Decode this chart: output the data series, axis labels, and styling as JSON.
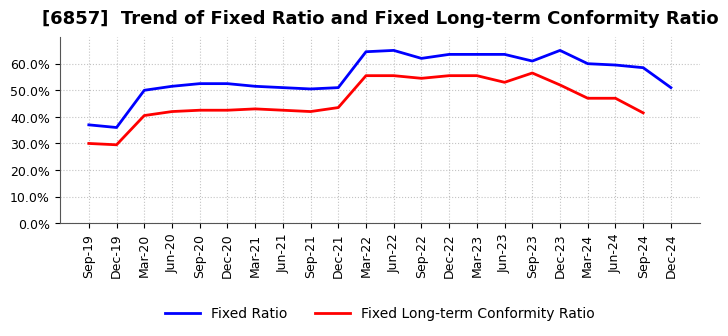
{
  "title": "[6857]  Trend of Fixed Ratio and Fixed Long-term Conformity Ratio",
  "x_labels": [
    "Sep-19",
    "Dec-19",
    "Mar-20",
    "Jun-20",
    "Sep-20",
    "Dec-20",
    "Mar-21",
    "Jun-21",
    "Sep-21",
    "Dec-21",
    "Mar-22",
    "Jun-22",
    "Sep-22",
    "Dec-22",
    "Mar-23",
    "Jun-23",
    "Sep-23",
    "Dec-23",
    "Mar-24",
    "Jun-24",
    "Sep-24",
    "Dec-24"
  ],
  "fixed_ratio": [
    37.0,
    36.0,
    50.0,
    51.5,
    52.5,
    52.5,
    51.5,
    51.0,
    50.5,
    51.0,
    64.5,
    65.0,
    62.0,
    63.5,
    63.5,
    63.5,
    61.0,
    65.0,
    60.0,
    59.5,
    58.5,
    51.0
  ],
  "fixed_lt_conformity": [
    30.0,
    29.5,
    40.5,
    42.0,
    42.5,
    42.5,
    43.0,
    42.5,
    42.0,
    43.5,
    55.5,
    55.5,
    54.5,
    55.5,
    55.5,
    53.0,
    56.5,
    52.0,
    47.0,
    47.0,
    41.5,
    null
  ],
  "fixed_ratio_color": "#0000FF",
  "fixed_lt_color": "#FF0000",
  "ylim": [
    0,
    70
  ],
  "yticks": [
    0,
    10,
    20,
    30,
    40,
    50,
    60
  ],
  "ytick_labels": [
    "0.0%",
    "10.0%",
    "20.0%",
    "30.0%",
    "40.0%",
    "50.0%",
    "60.0%"
  ],
  "legend_fixed_ratio": "Fixed Ratio",
  "legend_fixed_lt": "Fixed Long-term Conformity Ratio",
  "background_color": "#FFFFFF",
  "plot_bg_color": "#FFFFFF",
  "grid_color": "#AAAAAA",
  "title_fontsize": 13,
  "axis_fontsize": 9,
  "legend_fontsize": 10
}
